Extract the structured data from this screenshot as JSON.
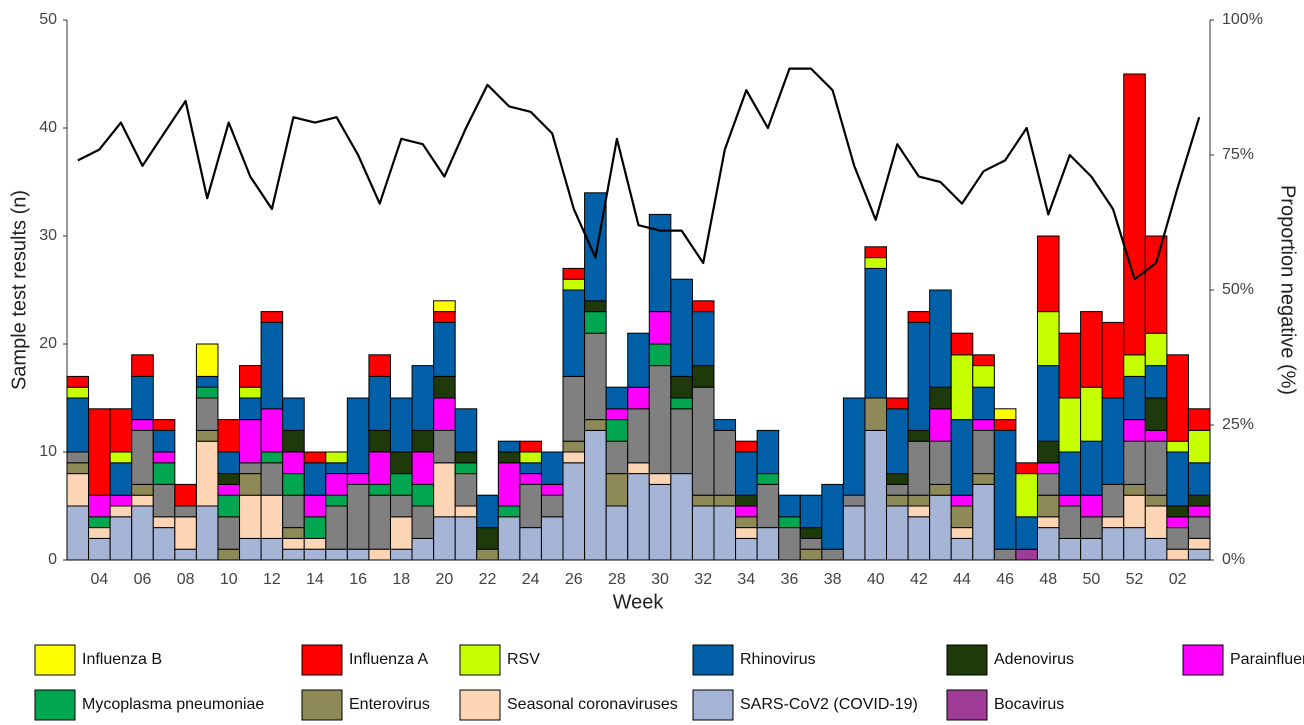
{
  "chart_data": {
    "type": "stacked_bar",
    "x_label": "Week",
    "y_label": "Sample test results (n)",
    "y2_label": "Proportion negative (%)",
    "categories": [
      null,
      "04",
      null,
      "06",
      null,
      "08",
      null,
      "10",
      null,
      "12",
      null,
      "14",
      null,
      "16",
      null,
      "18",
      null,
      "20",
      null,
      "22",
      null,
      "24",
      null,
      "26",
      null,
      "28",
      null,
      "30",
      null,
      "32",
      null,
      "34",
      null,
      "36",
      null,
      "38",
      null,
      "40",
      null,
      "42",
      null,
      "44",
      null,
      "46",
      null,
      "48",
      null,
      "50",
      null,
      "52",
      null,
      "02",
      null
    ],
    "ylim": [
      0,
      50
    ],
    "yticks": [
      0,
      10,
      20,
      30,
      40,
      50
    ],
    "y2lim": [
      0,
      100
    ],
    "y2ticks": [
      {
        "value": 0,
        "label": "0%"
      },
      {
        "value": 25,
        "label": "25%"
      },
      {
        "value": 50,
        "label": "50%"
      },
      {
        "value": 75,
        "label": "75%"
      },
      {
        "value": 100,
        "label": "100%"
      }
    ],
    "grid": false,
    "series": [
      {
        "name": "SARS-CoV2 (COVID-19)",
        "color": "#a6b4d6",
        "values": [
          5,
          2,
          4,
          5,
          3,
          1,
          5,
          0,
          2,
          2,
          1,
          1,
          1,
          1,
          0,
          1,
          2,
          4,
          4,
          0,
          4,
          3,
          4,
          9,
          12,
          5,
          8,
          7,
          8,
          5,
          5,
          2,
          3,
          0,
          0,
          0,
          5,
          12,
          5,
          4,
          6,
          2,
          7,
          0,
          0,
          3,
          2,
          2,
          3,
          3,
          2,
          0,
          1
        ]
      },
      {
        "name": "Seasonal coronaviruses",
        "color": "#fcd5b5",
        "values": [
          3,
          1,
          1,
          1,
          1,
          3,
          6,
          0,
          4,
          4,
          1,
          1,
          0,
          0,
          1,
          3,
          0,
          5,
          1,
          0,
          0,
          0,
          0,
          1,
          0,
          0,
          1,
          1,
          0,
          0,
          0,
          1,
          0,
          0,
          0,
          0,
          0,
          0,
          0,
          1,
          0,
          1,
          0,
          0,
          0,
          1,
          0,
          0,
          1,
          3,
          3,
          1,
          1
        ]
      },
      {
        "name": "Enterovirus",
        "color": "#8e8a57",
        "values": [
          1,
          0,
          0,
          1,
          0,
          0,
          1,
          1,
          2,
          0,
          1,
          0,
          0,
          0,
          0,
          0,
          0,
          0,
          0,
          1,
          0,
          0,
          0,
          1,
          1,
          3,
          0,
          0,
          0,
          1,
          1,
          1,
          0,
          0,
          1,
          0,
          0,
          3,
          1,
          1,
          1,
          2,
          1,
          0,
          0,
          2,
          0,
          0,
          0,
          1,
          1,
          0,
          0
        ]
      },
      {
        "color": "#808080",
        "values": [
          1,
          0,
          0,
          5,
          3,
          1,
          3,
          3,
          1,
          3,
          3,
          0,
          4,
          6,
          5,
          2,
          3,
          3,
          3,
          0,
          0,
          4,
          2,
          6,
          8,
          3,
          5,
          10,
          6,
          10,
          6,
          0,
          4,
          3,
          1,
          1,
          1,
          0,
          1,
          5,
          4,
          0,
          4,
          1,
          0,
          2,
          3,
          2,
          3,
          4,
          5,
          2,
          2
        ]
      },
      {
        "name": "Mycoplasma pneumoniae",
        "color": "#00a650",
        "values": [
          0,
          1,
          0,
          0,
          2,
          0,
          1,
          2,
          0,
          1,
          2,
          2,
          1,
          0,
          1,
          2,
          2,
          0,
          1,
          0,
          1,
          0,
          0,
          0,
          2,
          2,
          0,
          2,
          1,
          0,
          0,
          0,
          1,
          1,
          0,
          0,
          0,
          0,
          0,
          0,
          0,
          0,
          0,
          0,
          0,
          0,
          0,
          0,
          0,
          0,
          0,
          0,
          0
        ]
      },
      {
        "name": "Parainfluenza",
        "color": "#ff00ff",
        "values": [
          0,
          2,
          1,
          1,
          1,
          0,
          0,
          1,
          4,
          4,
          2,
          2,
          2,
          1,
          3,
          0,
          3,
          3,
          0,
          0,
          4,
          1,
          1,
          0,
          0,
          1,
          2,
          3,
          0,
          0,
          0,
          1,
          0,
          0,
          0,
          0,
          0,
          0,
          0,
          0,
          3,
          1,
          1,
          0,
          0,
          1,
          1,
          2,
          0,
          2,
          1,
          1,
          1
        ]
      },
      {
        "name": "Bocavirus",
        "color": "#9e3c96",
        "values": [
          0,
          0,
          0,
          0,
          0,
          0,
          0,
          0,
          0,
          0,
          0,
          0,
          0,
          0,
          0,
          0,
          0,
          0,
          0,
          0,
          0,
          0,
          0,
          0,
          0,
          0,
          0,
          0,
          0,
          0,
          0,
          0,
          0,
          0,
          0,
          0,
          0,
          0,
          0,
          0,
          0,
          0,
          0,
          0,
          1,
          0,
          0,
          0,
          0,
          0,
          0,
          0,
          0
        ]
      },
      {
        "name": "Adenovirus",
        "color": "#1f3a0a",
        "values": [
          0,
          0,
          0,
          0,
          0,
          0,
          0,
          1,
          0,
          0,
          2,
          0,
          0,
          0,
          2,
          2,
          2,
          2,
          1,
          2,
          1,
          0,
          0,
          0,
          1,
          0,
          0,
          0,
          2,
          2,
          0,
          1,
          0,
          0,
          1,
          0,
          0,
          0,
          1,
          1,
          2,
          0,
          0,
          0,
          0,
          2,
          0,
          0,
          0,
          0,
          3,
          1,
          1
        ]
      },
      {
        "name": "Rhinovirus",
        "color": "#0160a8",
        "values": [
          5,
          0,
          3,
          4,
          2,
          0,
          1,
          2,
          2,
          8,
          3,
          3,
          1,
          7,
          5,
          5,
          6,
          5,
          4,
          3,
          1,
          1,
          3,
          8,
          10,
          2,
          5,
          9,
          9,
          5,
          1,
          4,
          4,
          2,
          3,
          6,
          9,
          12,
          6,
          10,
          9,
          7,
          3,
          11,
          3,
          7,
          4,
          5,
          8,
          4,
          3,
          5,
          3
        ]
      },
      {
        "name": "RSV",
        "color": "#c6ff00",
        "values": [
          1,
          0,
          1,
          0,
          0,
          0,
          0,
          0,
          1,
          0,
          0,
          0,
          1,
          0,
          0,
          0,
          0,
          0,
          0,
          0,
          0,
          1,
          0,
          1,
          0,
          0,
          0,
          0,
          0,
          0,
          0,
          0,
          0,
          0,
          0,
          0,
          0,
          1,
          0,
          0,
          0,
          6,
          2,
          0,
          4,
          5,
          5,
          5,
          0,
          2,
          3,
          1,
          3
        ]
      },
      {
        "name": "Influenza A",
        "color": "#ff0000",
        "values": [
          1,
          8,
          4,
          2,
          1,
          2,
          0,
          3,
          2,
          1,
          0,
          1,
          0,
          0,
          2,
          0,
          0,
          1,
          0,
          0,
          0,
          1,
          0,
          1,
          0,
          0,
          0,
          0,
          0,
          1,
          0,
          1,
          0,
          0,
          0,
          0,
          0,
          1,
          1,
          1,
          0,
          2,
          1,
          1,
          1,
          7,
          6,
          7,
          7,
          26,
          9,
          8,
          2
        ]
      },
      {
        "name": "Influenza B",
        "color": "#ffff00",
        "values": [
          0,
          0,
          0,
          0,
          0,
          0,
          3,
          0,
          0,
          0,
          0,
          0,
          0,
          0,
          0,
          0,
          0,
          1,
          0,
          0,
          0,
          0,
          0,
          0,
          0,
          0,
          0,
          0,
          0,
          0,
          0,
          0,
          0,
          0,
          0,
          0,
          0,
          0,
          0,
          0,
          0,
          0,
          0,
          1,
          0,
          0,
          0,
          0,
          0,
          0,
          0,
          0,
          0
        ]
      },
      {
        "type": "line",
        "axis": "y2",
        "color": "#000000",
        "values": [
          74,
          76,
          81,
          73,
          79,
          85,
          67,
          81,
          71,
          65,
          82,
          81,
          82,
          75,
          66,
          78,
          77,
          71,
          80,
          88,
          84,
          83,
          79,
          65,
          56,
          78,
          62,
          61,
          61,
          55,
          76,
          87,
          80,
          91,
          91,
          87,
          73,
          63,
          77,
          71,
          70,
          66,
          72,
          74,
          80,
          64,
          75,
          71,
          65,
          52,
          55,
          69,
          82
        ]
      }
    ]
  }
}
